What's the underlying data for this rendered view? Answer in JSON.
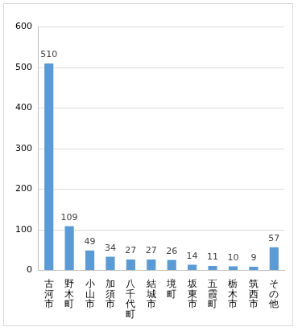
{
  "chart_data": {
    "type": "bar",
    "categories": [
      "古河市",
      "野木町",
      "小山市",
      "加須市",
      "八千代町",
      "結城市",
      "境町",
      "坂東市",
      "五霞町",
      "栃木市",
      "筑西市",
      "その他"
    ],
    "values": [
      510,
      109,
      49,
      34,
      27,
      27,
      26,
      14,
      11,
      10,
      9,
      57
    ],
    "color": "#5b9bd5",
    "ylim": [
      0,
      600
    ],
    "yticks": [
      0,
      100,
      200,
      300,
      400,
      500,
      600
    ],
    "grid": true,
    "data_labels": true
  }
}
